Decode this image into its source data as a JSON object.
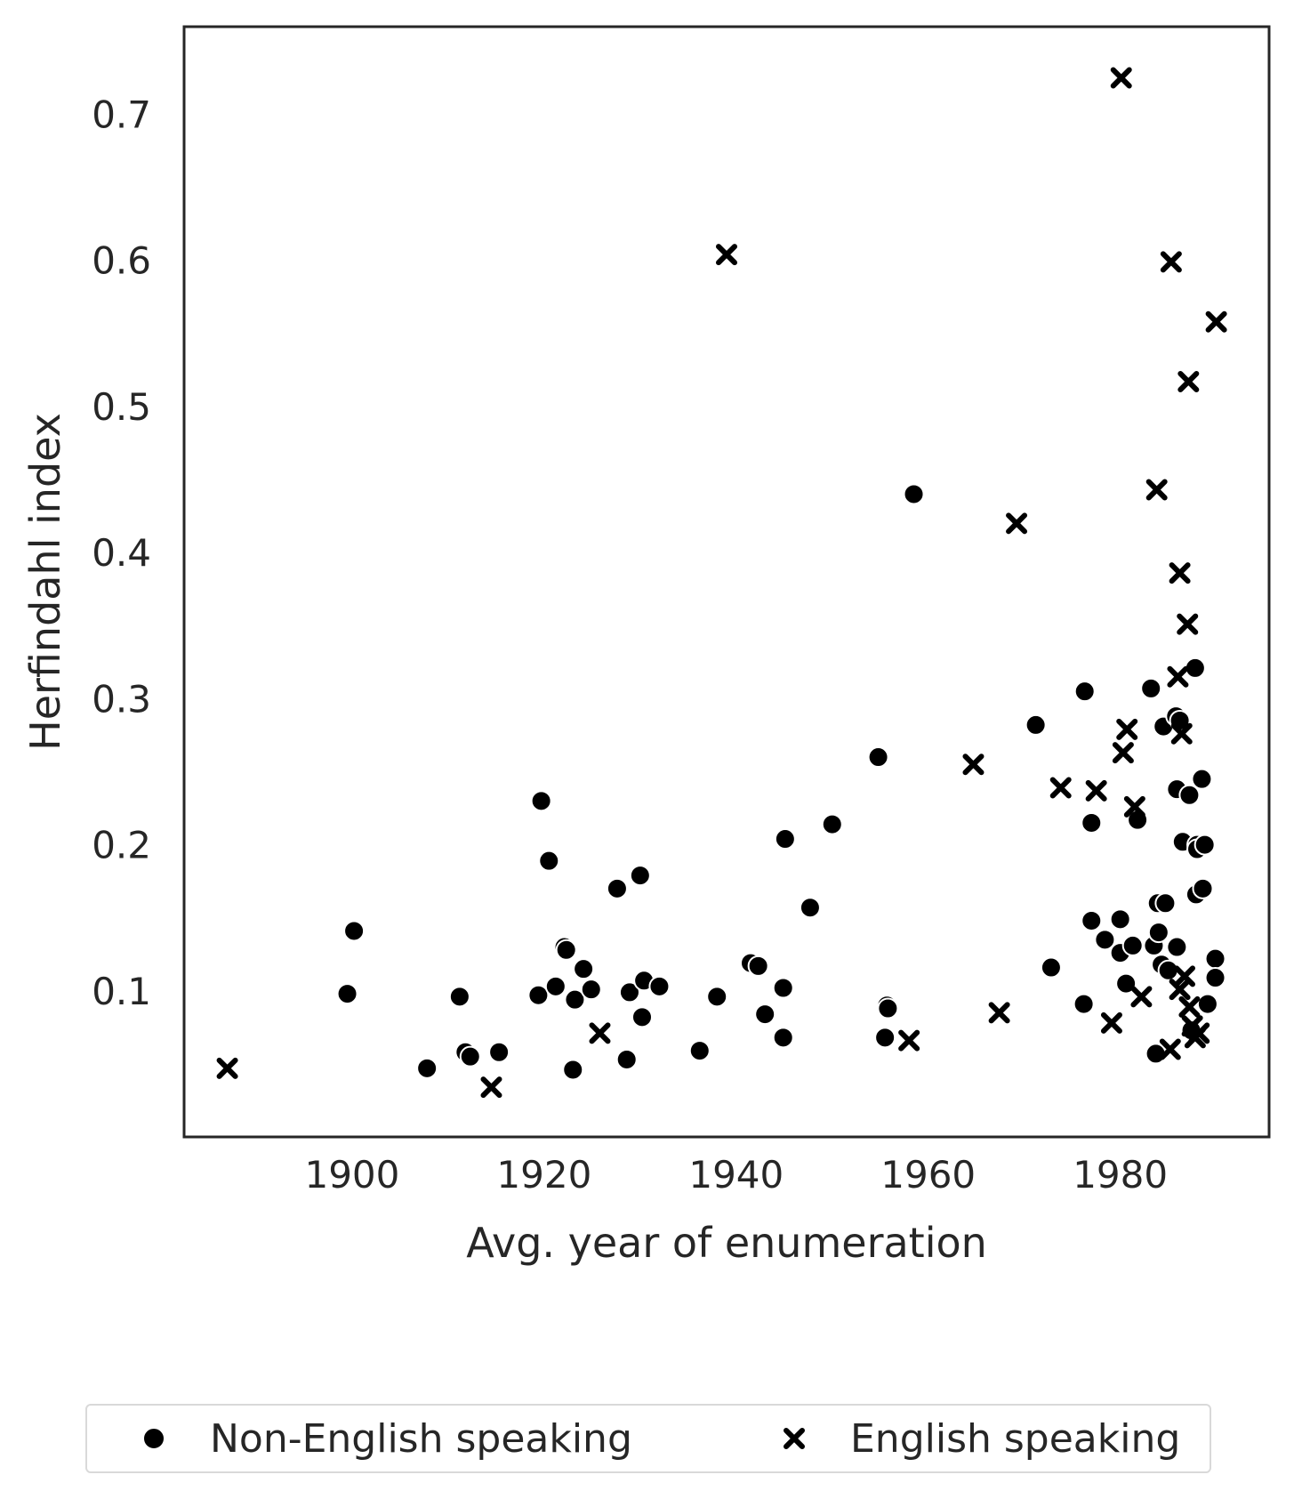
{
  "chart_data": {
    "type": "scatter",
    "title": "",
    "xlabel": "Avg. year of enumeration",
    "ylabel": "Herfindahl index",
    "xlim": [
      1882.5,
      1995.5
    ],
    "ylim": [
      0.0,
      0.76
    ],
    "xticks": [
      "1900",
      "1920",
      "1940",
      "1960",
      "1980"
    ],
    "yticks": [
      "0.1",
      "0.2",
      "0.3",
      "0.4",
      "0.5",
      "0.6",
      "0.7"
    ],
    "grid": false,
    "legend": "bottom-center",
    "series": [
      {
        "name": "Non-English speaking",
        "marker": "circle",
        "color": "#000000",
        "points": [
          [
            1899.5,
            0.098
          ],
          [
            1900.2,
            0.141
          ],
          [
            1907.8,
            0.047
          ],
          [
            1911.2,
            0.096
          ],
          [
            1911.8,
            0.058
          ],
          [
            1912.3,
            0.055
          ],
          [
            1915.3,
            0.058
          ],
          [
            1919.4,
            0.097
          ],
          [
            1919.7,
            0.23
          ],
          [
            1920.5,
            0.189
          ],
          [
            1921.2,
            0.103
          ],
          [
            1922.1,
            0.13
          ],
          [
            1922.3,
            0.128
          ],
          [
            1923.2,
            0.094
          ],
          [
            1923.0,
            0.046
          ],
          [
            1924.1,
            0.115
          ],
          [
            1924.9,
            0.101
          ],
          [
            1927.6,
            0.17
          ],
          [
            1928.6,
            0.053
          ],
          [
            1928.9,
            0.099
          ],
          [
            1930.0,
            0.179
          ],
          [
            1930.2,
            0.082
          ],
          [
            1930.4,
            0.107
          ],
          [
            1932.0,
            0.103
          ],
          [
            1936.2,
            0.059
          ],
          [
            1938.0,
            0.096
          ],
          [
            1941.5,
            0.119
          ],
          [
            1942.3,
            0.117
          ],
          [
            1943.0,
            0.084
          ],
          [
            1944.9,
            0.102
          ],
          [
            1944.9,
            0.068
          ],
          [
            1945.1,
            0.204
          ],
          [
            1947.7,
            0.157
          ],
          [
            1950.0,
            0.214
          ],
          [
            1954.8,
            0.26
          ],
          [
            1955.5,
            0.068
          ],
          [
            1955.7,
            0.09
          ],
          [
            1955.8,
            0.088
          ],
          [
            1958.5,
            0.44
          ],
          [
            1971.2,
            0.282
          ],
          [
            1972.8,
            0.116
          ],
          [
            1976.2,
            0.091
          ],
          [
            1976.3,
            0.305
          ],
          [
            1977.0,
            0.148
          ],
          [
            1977.0,
            0.215
          ],
          [
            1978.4,
            0.135
          ],
          [
            1980.0,
            0.149
          ],
          [
            1980.0,
            0.126
          ],
          [
            1980.6,
            0.105
          ],
          [
            1981.3,
            0.131
          ],
          [
            1981.8,
            0.217
          ],
          [
            1983.2,
            0.307
          ],
          [
            1983.5,
            0.131
          ],
          [
            1983.7,
            0.057
          ],
          [
            1983.9,
            0.16
          ],
          [
            1984.0,
            0.14
          ],
          [
            1984.3,
            0.118
          ],
          [
            1984.5,
            0.281
          ],
          [
            1984.7,
            0.16
          ],
          [
            1985.0,
            0.114
          ],
          [
            1985.8,
            0.288
          ],
          [
            1985.9,
            0.238
          ],
          [
            1985.9,
            0.13
          ],
          [
            1986.2,
            0.285
          ],
          [
            1986.5,
            0.202
          ],
          [
            1987.2,
            0.234
          ],
          [
            1987.4,
            0.073
          ],
          [
            1987.8,
            0.321
          ],
          [
            1987.9,
            0.166
          ],
          [
            1988.0,
            0.2
          ],
          [
            1988.0,
            0.197
          ],
          [
            1988.5,
            0.245
          ],
          [
            1988.6,
            0.17
          ],
          [
            1988.8,
            0.2
          ],
          [
            1989.1,
            0.091
          ],
          [
            1989.9,
            0.122
          ],
          [
            1989.9,
            0.109
          ]
        ]
      },
      {
        "name": "English speaking",
        "marker": "x",
        "color": "#000000",
        "points": [
          [
            1887.0,
            0.047
          ],
          [
            1914.5,
            0.034
          ],
          [
            1925.8,
            0.071
          ],
          [
            1939.0,
            0.604
          ],
          [
            1958.0,
            0.066
          ],
          [
            1964.7,
            0.255
          ],
          [
            1967.4,
            0.085
          ],
          [
            1969.2,
            0.42
          ],
          [
            1973.8,
            0.239
          ],
          [
            1977.5,
            0.237
          ],
          [
            1979.1,
            0.078
          ],
          [
            1980.1,
            0.725
          ],
          [
            1980.3,
            0.263
          ],
          [
            1980.7,
            0.279
          ],
          [
            1981.5,
            0.226
          ],
          [
            1982.2,
            0.096
          ],
          [
            1983.8,
            0.443
          ],
          [
            1985.2,
            0.06
          ],
          [
            1985.3,
            0.599
          ],
          [
            1986.0,
            0.315
          ],
          [
            1986.2,
            0.101
          ],
          [
            1986.2,
            0.386
          ],
          [
            1986.4,
            0.276
          ],
          [
            1986.7,
            0.11
          ],
          [
            1987.0,
            0.351
          ],
          [
            1987.1,
            0.517
          ],
          [
            1987.2,
            0.089
          ],
          [
            1987.5,
            0.076
          ],
          [
            1987.8,
            0.068
          ],
          [
            1988.2,
            0.071
          ],
          [
            1990.0,
            0.558
          ]
        ]
      }
    ]
  }
}
